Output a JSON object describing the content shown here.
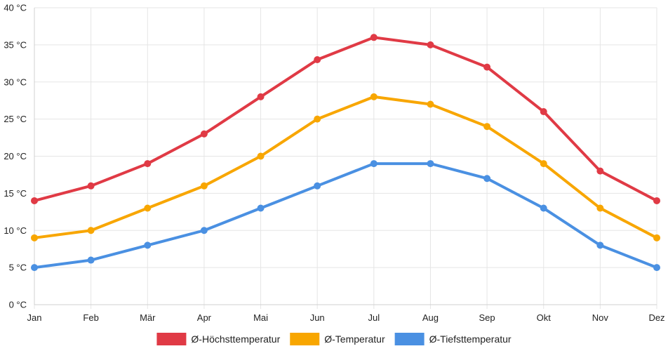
{
  "chart_data": {
    "type": "line",
    "title": "",
    "xlabel": "",
    "ylabel": "",
    "categories": [
      "Jan",
      "Feb",
      "Mär",
      "Apr",
      "Mai",
      "Jun",
      "Jul",
      "Aug",
      "Sep",
      "Okt",
      "Nov",
      "Dez"
    ],
    "ylim": [
      0,
      40
    ],
    "y_ticks": [
      0,
      5,
      10,
      15,
      20,
      25,
      30,
      35,
      40
    ],
    "y_tick_labels": [
      "0 °C",
      "5 °C",
      "10 °C",
      "15 °C",
      "20 °C",
      "25 °C",
      "30 °C",
      "35 °C",
      "40 °C"
    ],
    "grid": true,
    "legend_position": "bottom-center",
    "series": [
      {
        "name": "Ø-Höchsttemperatur",
        "color": "#e03a45",
        "values": [
          14,
          16,
          19,
          23,
          28,
          33,
          36,
          35,
          32,
          26,
          18,
          14
        ]
      },
      {
        "name": "Ø-Temperatur",
        "color": "#f8a600",
        "values": [
          9,
          10,
          13,
          16,
          20,
          25,
          28,
          27,
          24,
          19,
          13,
          9
        ]
      },
      {
        "name": "Ø-Tiefsttemperatur",
        "color": "#4a90e2",
        "values": [
          5,
          6,
          8,
          10,
          13,
          16,
          19,
          19,
          17,
          13,
          8,
          5
        ]
      }
    ]
  }
}
